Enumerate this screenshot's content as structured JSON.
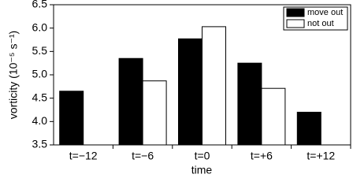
{
  "chart_data": {
    "type": "bar",
    "x_label": "time",
    "y_label": "vorticity (10⁻⁵ s⁻¹)",
    "categories": [
      "t=−12",
      "t=−6",
      "t=0",
      "t=+6",
      "t=+12"
    ],
    "series": [
      {
        "name": "move out",
        "color": "#000000",
        "values": [
          4.65,
          5.35,
          5.77,
          5.25,
          4.2
        ]
      },
      {
        "name": "not out",
        "color": "#ffffff",
        "values": [
          null,
          4.87,
          6.03,
          4.71,
          null
        ]
      }
    ],
    "ylim": [
      3.5,
      6.5
    ],
    "yticks": [
      {
        "value": 3.5,
        "label": "3.5"
      },
      {
        "value": 4,
        "label": "4.0"
      },
      {
        "value": 4.5,
        "label": "4.5"
      },
      {
        "value": 5,
        "label": "5.0"
      },
      {
        "value": 5.5,
        "label": "5.5"
      },
      {
        "value": 6,
        "label": "6.0"
      },
      {
        "value": 6.5,
        "label": "6.5"
      }
    ],
    "legend_position": "upper right"
  }
}
